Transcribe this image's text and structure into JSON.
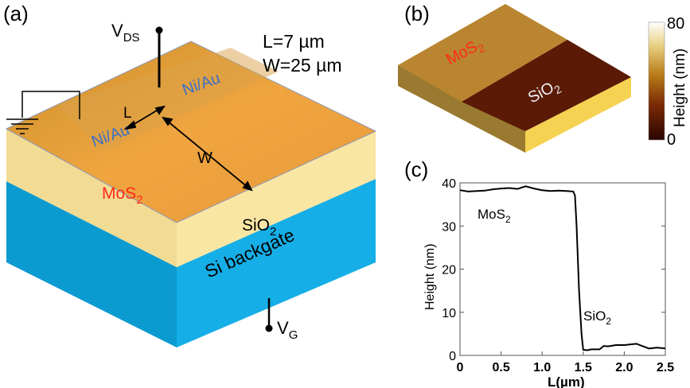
{
  "panel_a": {
    "label": "(a)",
    "vds": "V",
    "vds_sub": "DS",
    "vg": "V",
    "vg_sub": "G",
    "length": "L=7 µm",
    "width": "W=25 µm",
    "contact1": "Ni/Au",
    "contact2": "Ni/Au",
    "L_label": "L",
    "W_label": "W",
    "mos2": "MoS",
    "mos2_sub": "2",
    "sio2": "SiO",
    "sio2_sub": "2",
    "si": "Si backgate",
    "colors": {
      "top": "#e8a532",
      "sio2": "#f8e39b",
      "si": "#12a6de",
      "contact_text": "#3a6ec8",
      "mos2_text": "#ff2a1a"
    }
  },
  "panel_b": {
    "label": "(b)",
    "mos2": "MoS",
    "mos2_sub": "2",
    "sio2": "SiO",
    "sio2_sub": "2",
    "colorbar_label": "Height (nm)",
    "colorbar_max": "80",
    "colorbar_min": "0"
  },
  "chart_data": {
    "label": "(c)",
    "type": "line",
    "xlabel": "L(µm)",
    "ylabel": "Height (nm)",
    "xlim": [
      0,
      2.5
    ],
    "ylim": [
      0,
      40
    ],
    "xticks": [
      "0",
      "0.5",
      "1.0",
      "1.5",
      "2.0",
      "2.5"
    ],
    "yticks": [
      "0",
      "10",
      "20",
      "30",
      "40"
    ],
    "annotations": [
      {
        "text": "MoS",
        "sub": "2"
      },
      {
        "text": "SiO",
        "sub": "2"
      }
    ],
    "x": [
      0,
      0.1,
      0.2,
      0.3,
      0.4,
      0.5,
      0.6,
      0.7,
      0.8,
      0.9,
      1.0,
      1.1,
      1.2,
      1.3,
      1.38,
      1.4,
      1.42,
      1.45,
      1.48,
      1.5,
      1.55,
      1.6,
      1.7,
      1.75,
      1.8,
      1.9,
      2.0,
      2.1,
      2.15,
      2.2,
      2.3,
      2.4,
      2.5
    ],
    "y": [
      38.3,
      38.0,
      38.1,
      38.2,
      38.5,
      38.7,
      38.8,
      38.6,
      39.2,
      38.7,
      38.3,
      38.1,
      38.2,
      38.1,
      38.0,
      37.0,
      30,
      15,
      5,
      1.3,
      1.2,
      1.4,
      1.4,
      2.2,
      2.1,
      2.4,
      2.4,
      2.6,
      2.7,
      2.3,
      1.6,
      1.8,
      1.6
    ]
  }
}
